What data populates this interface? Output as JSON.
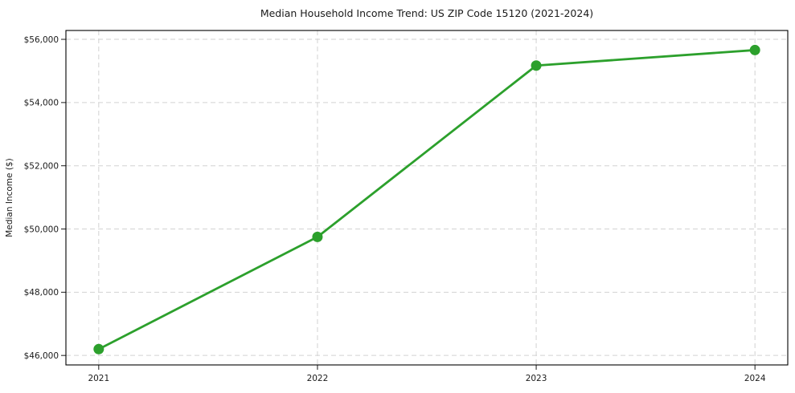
{
  "chart_data": {
    "type": "line",
    "title": "Median Household Income Trend: US ZIP Code 15120 (2021-2024)",
    "xlabel": "",
    "ylabel": "Median Income ($)",
    "x": [
      2021,
      2022,
      2023,
      2024
    ],
    "x_tick_labels": [
      "2021",
      "2022",
      "2023",
      "2024"
    ],
    "values": [
      46200,
      49750,
      55170,
      55660
    ],
    "y_ticks": [
      46000,
      48000,
      50000,
      52000,
      54000,
      56000
    ],
    "y_tick_labels": [
      "$46,000",
      "$48,000",
      "$50,000",
      "$52,000",
      "$54,000",
      "$56,000"
    ],
    "xlim": [
      2020.85,
      2024.15
    ],
    "ylim": [
      45700,
      56280
    ],
    "grid": "dashed-both-axes",
    "legend": "none",
    "line_color": "#2ca02c",
    "marker": "circle",
    "background_color": "#ffffff"
  }
}
